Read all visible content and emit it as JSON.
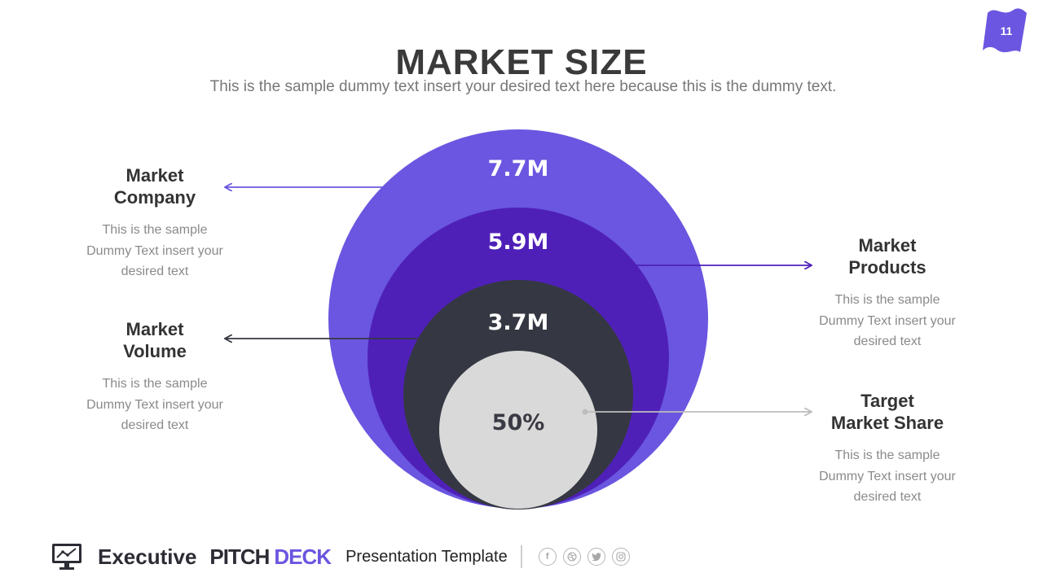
{
  "page_number": "11",
  "title": "MARKET SIZE",
  "subtitle": "This is the sample dummy text insert your desired text here because this is the dummy text.",
  "colors": {
    "outer": "#6a56e0",
    "second": "#4f20b8",
    "third": "#353842",
    "inner": "#d9d9d9",
    "accent": "#6a56e0"
  },
  "circles": [
    {
      "value": "7.7M"
    },
    {
      "value": "5.9M"
    },
    {
      "value": "3.7M"
    },
    {
      "value": "50%"
    }
  ],
  "labels": {
    "market_company": {
      "line1": "Market",
      "line2": "Company",
      "desc1": "This is the sample",
      "desc2": "Dummy Text insert your",
      "desc3": "desired text"
    },
    "market_volume": {
      "line1": "Market",
      "line2": "Volume",
      "desc1": "This is the sample",
      "desc2": "Dummy Text insert your",
      "desc3": "desired text"
    },
    "market_products": {
      "line1": "Market",
      "line2": "Products",
      "desc1": "This is the sample",
      "desc2": "Dummy Text insert your",
      "desc3": "desired text"
    },
    "target_market_share": {
      "line1": "Target",
      "line2": "Market Share",
      "desc1": "This is the sample",
      "desc2": "Dummy Text insert your",
      "desc3": "desired text"
    }
  },
  "footer": {
    "brand_word": "Executive",
    "brand_pitch": "PITCH",
    "brand_deck": "DECK",
    "tagline": "Presentation Template",
    "social_icons": [
      "facebook-icon",
      "dribbble-icon",
      "twitter-icon",
      "instagram-icon"
    ]
  }
}
